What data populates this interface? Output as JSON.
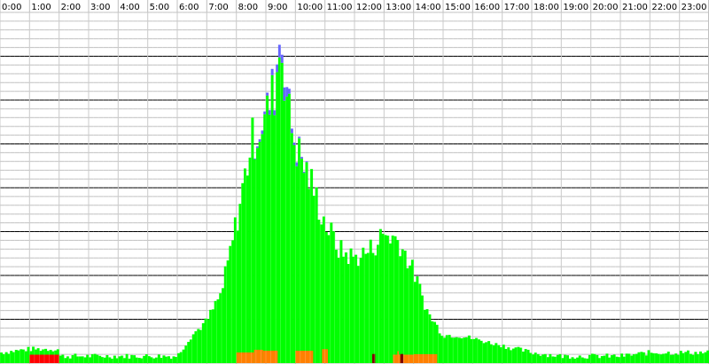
{
  "chart_data": {
    "type": "bar",
    "categories": [
      "0:00",
      "1:00",
      "2:00",
      "3:00",
      "4:00",
      "5:00",
      "6:00",
      "7:00",
      "8:00",
      "9:00",
      "10:00",
      "11:00",
      "12:00",
      "13:00",
      "14:00",
      "15:00",
      "16:00",
      "17:00",
      "18:00",
      "19:00",
      "20:00",
      "21:00",
      "22:00",
      "23:00"
    ],
    "xlabel": "",
    "ylabel": "",
    "ylim": [
      0,
      100
    ],
    "grid": true,
    "legend": "none",
    "bins_per_hour": 12,
    "colors": {
      "green": "#00ff00",
      "blue": "#6666ff",
      "orange": "#ff8000",
      "red": "#ff0000",
      "darkred": "#800000",
      "grid_light": "#c0c0c0",
      "grid_dark": "#000000"
    },
    "hourly_profile": {
      "x_hours": [
        0,
        1,
        1.99,
        2,
        3,
        4,
        5,
        6,
        6.5,
        7,
        7.5,
        8,
        8.5,
        9,
        9.3,
        9.5,
        9.8,
        10,
        10.5,
        11,
        11.5,
        12,
        12.5,
        13,
        13.5,
        14,
        14.5,
        15,
        15.5,
        16,
        16.5,
        17,
        17.5,
        18,
        19,
        20,
        21,
        22,
        23,
        24
      ],
      "green_pct": [
        3,
        4,
        4,
        2,
        2,
        2,
        2,
        2,
        8,
        12,
        20,
        40,
        63,
        70,
        78,
        92,
        70,
        62,
        52,
        40,
        32,
        30,
        32,
        37,
        35,
        26,
        14,
        8,
        8,
        7,
        6,
        5,
        4,
        3,
        2,
        2,
        2,
        3,
        3,
        3
      ],
      "blue_pct": [
        0,
        0,
        0,
        0,
        0,
        0,
        0,
        0,
        0,
        0,
        0,
        0,
        0,
        1,
        2,
        4,
        2,
        1,
        0,
        0,
        0,
        0,
        0,
        0,
        0,
        0,
        0,
        0,
        0,
        0,
        0,
        0,
        0,
        0,
        0,
        0,
        0,
        0,
        0,
        0
      ]
    },
    "series": [
      {
        "color": "green"
      },
      {
        "color": "blue"
      },
      {
        "color": "orange",
        "ranges": [
          [
            8.0,
            8.6
          ],
          [
            8.6,
            8.9
          ],
          [
            8.9,
            9.4
          ],
          [
            10.0,
            10.6
          ],
          [
            10.9,
            11.1
          ],
          [
            13.3,
            14.0
          ],
          [
            14.0,
            14.8
          ],
          [
            13.45,
            13.5
          ]
        ]
      },
      {
        "color": "red",
        "ranges": [
          [
            1.0,
            2.0
          ]
        ]
      },
      {
        "color": "darkred",
        "ranges": [
          [
            12.6,
            12.7
          ],
          [
            13.55,
            13.65
          ]
        ]
      }
    ]
  }
}
